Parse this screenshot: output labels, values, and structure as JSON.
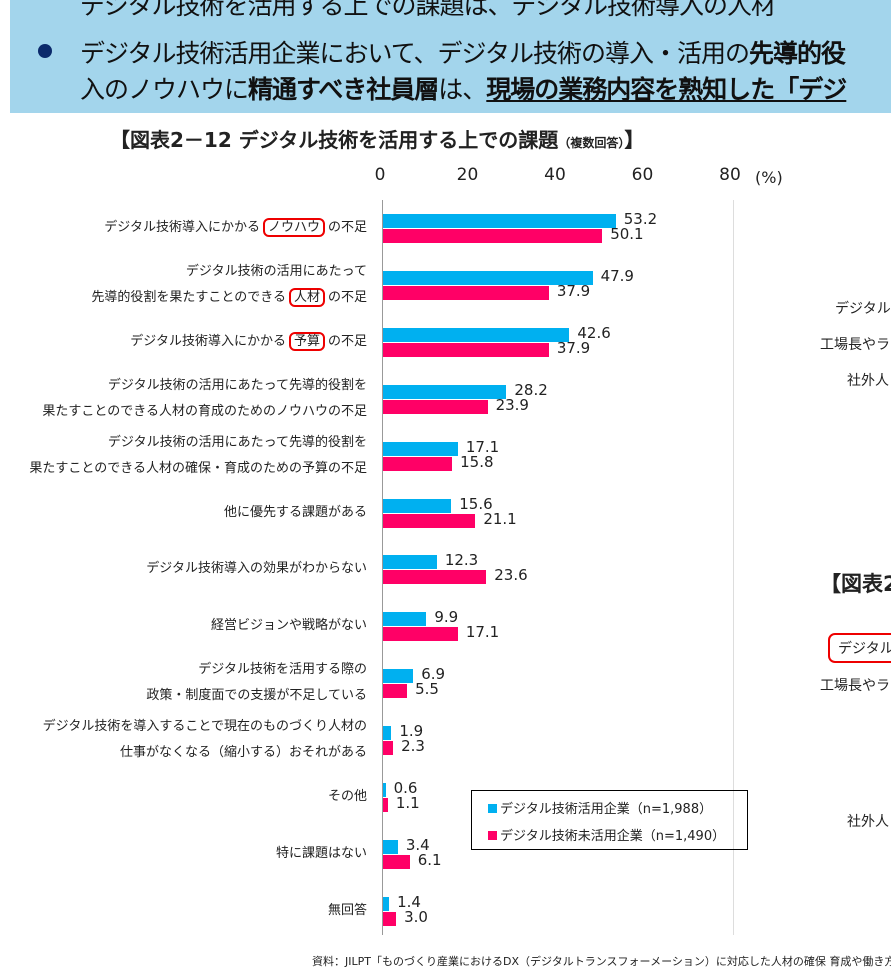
{
  "banner": {
    "line0": "デジタル技術を活用する上での課題は、デジタル技術導入の人材",
    "line1_parts": [
      {
        "t": "デジタル技術活用企業において、デジタル技術の導入・活用の"
      },
      {
        "t": "先導的役",
        "s": "b"
      }
    ],
    "line2_parts": [
      {
        "t": "入のノウハウに"
      },
      {
        "t": "精通すべき社員層",
        "s": "b"
      },
      {
        "t": "は、"
      },
      {
        "t": "現場の業務内容を熟知した「デジ",
        "s": "u"
      }
    ]
  },
  "title": "【図表2－12 デジタル技術を活用する上での課題",
  "title_small": "（複数回答）",
  "title_end": "】",
  "right_fragments": [
    "デジタル",
    "工場長やラ",
    "社外人",
    "【図表2",
    "デジタル",
    "工場長やラ",
    "社外人"
  ],
  "source": "資料：JILPT「ものづくり産業におけるDX（デジタルトランスフォーメーション）に対応した人材の確保 育成や働き方に",
  "chart_data": {
    "type": "bar",
    "orientation": "horizontal",
    "xlim": [
      0,
      80
    ],
    "xticks": [
      "0",
      "20",
      "40",
      "60",
      "80"
    ],
    "unit": "(%)",
    "grid": false,
    "legend_placement": "bottom-right",
    "categories": [
      [
        [
          {
            "t": "デジタル技術導入にかかる"
          },
          {
            "t": "ノウハウ",
            "box": true
          },
          {
            "t": "の不足"
          }
        ]
      ],
      [
        [
          {
            "t": "デジタル技術の活用にあたって"
          }
        ],
        [
          {
            "t": "先導的役割を果たすことのできる"
          },
          {
            "t": "人材",
            "box": true
          },
          {
            "t": "の不足"
          }
        ]
      ],
      [
        [
          {
            "t": "デジタル技術導入にかかる"
          },
          {
            "t": "予算",
            "box": true
          },
          {
            "t": "の不足"
          }
        ]
      ],
      [
        [
          {
            "t": "デジタル技術の活用にあたって先導的役割を"
          }
        ],
        [
          {
            "t": "果たすことのできる人材の育成のためのノウハウの不足"
          }
        ]
      ],
      [
        [
          {
            "t": "デジタル技術の活用にあたって先導的役割を"
          }
        ],
        [
          {
            "t": "果たすことのできる人材の確保・育成のための予算の不足"
          }
        ]
      ],
      [
        [
          {
            "t": "他に優先する課題がある"
          }
        ]
      ],
      [
        [
          {
            "t": "デジタル技術導入の効果がわからない"
          }
        ]
      ],
      [
        [
          {
            "t": "経営ビジョンや戦略がない"
          }
        ]
      ],
      [
        [
          {
            "t": "デジタル技術を活用する際の"
          }
        ],
        [
          {
            "t": "政策・制度面での支援が不足している"
          }
        ]
      ],
      [
        [
          {
            "t": "デジタル技術を導入することで現在のものづくり人材の"
          }
        ],
        [
          {
            "t": "仕事がなくなる（縮小する）おそれがある"
          }
        ]
      ],
      [
        [
          {
            "t": "その他"
          }
        ]
      ],
      [
        [
          {
            "t": "特に課題はない"
          }
        ]
      ],
      [
        [
          {
            "t": "無回答"
          }
        ]
      ]
    ],
    "series": [
      {
        "name": "デジタル技術活用企業（n=1,988）",
        "color": "#00b0f0",
        "values": [
          53.2,
          47.9,
          42.6,
          28.2,
          17.1,
          15.6,
          12.3,
          9.9,
          6.9,
          1.9,
          0.6,
          3.4,
          1.4
        ],
        "labels": [
          "53.2",
          "47.9",
          "42.6",
          "28.2",
          "17.1",
          "15.6",
          "12.3",
          "9.9",
          "6.9",
          "1.9",
          "0.6",
          "3.4",
          "1.4"
        ]
      },
      {
        "name": "デジタル技術未活用企業（n=1,490）",
        "color": "#ff0066",
        "values": [
          50.1,
          37.9,
          37.9,
          23.9,
          15.8,
          21.1,
          23.6,
          17.1,
          5.5,
          2.3,
          1.1,
          6.1,
          3.0
        ],
        "labels": [
          "50.1",
          "37.9",
          "37.9",
          "23.9",
          "15.8",
          "21.1",
          "23.6",
          "17.1",
          "5.5",
          "2.3",
          "1.1",
          "6.1",
          "3.0"
        ]
      }
    ]
  }
}
